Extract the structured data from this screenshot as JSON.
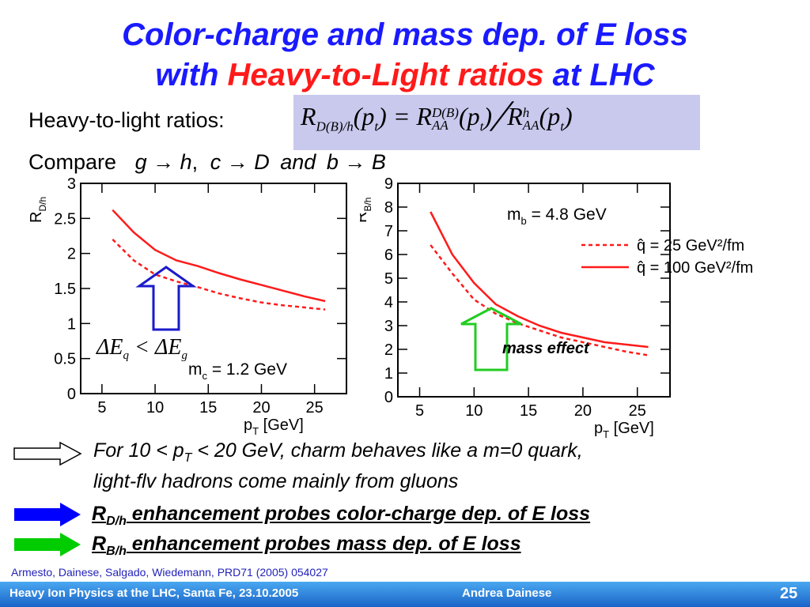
{
  "title": {
    "line1": "Color-charge and mass dep. of E loss",
    "line2_pre": "with ",
    "line2_red": "Heavy-to-Light ratios",
    "line2_post": " at LHC"
  },
  "ratios_label": "Heavy-to-light ratios:",
  "formula": {
    "lhs_R": "R",
    "lhs_sub": "D(B)/h",
    "lhs_arg": "(p",
    "t": "t",
    "close": ")",
    "eq": " = ",
    "R": "R",
    "sup_DB": "D(B)",
    "sub_AA": "AA",
    "slash": "╱",
    "sup_h": "h"
  },
  "compare": {
    "label": "Compare",
    "g": "g",
    "h": "h",
    "c": "c",
    "D": "D",
    "and": "and",
    "b": "b",
    "B": "B",
    "arrow": "→",
    "comma": ","
  },
  "colors": {
    "title_blue": "#1a1aff",
    "title_red": "#ff1a1a",
    "curve_red": "#ff1a1a",
    "arrow_blue": "#1a1acc",
    "arrow_green": "#22cc22",
    "bullet_blue": "#0000ff",
    "bullet_green": "#00cc00",
    "footer": "#1a64c8"
  },
  "chart_data": [
    {
      "type": "line",
      "ylabel": "R_D/h",
      "xlabel": "p_T [GeV]",
      "xlim": [
        3,
        28
      ],
      "ylim": [
        0,
        3
      ],
      "xticks": [
        5,
        10,
        15,
        20,
        25
      ],
      "yticks": [
        0,
        0.5,
        1,
        1.5,
        2,
        2.5,
        3
      ],
      "tick_labels_x": [
        "5",
        "10",
        "15",
        "20",
        "25"
      ],
      "tick_labels_y": [
        "0",
        "0.5",
        "1",
        "1.5",
        "2",
        "2.5",
        "3"
      ],
      "annotation_mass": "m",
      "annotation_mass_sub": "c",
      "annotation_mass_val": " = 1.2 GeV",
      "annotation_delta": {
        "lhs": "ΔE",
        "lhs_sub": "q",
        "op": " < ",
        "rhs": "ΔE",
        "rhs_sub": "g"
      },
      "series": [
        {
          "style": "solid",
          "x": [
            6,
            8,
            10,
            12,
            14,
            16,
            18,
            20,
            22,
            24,
            26
          ],
          "y": [
            2.62,
            2.3,
            2.05,
            1.9,
            1.82,
            1.72,
            1.63,
            1.55,
            1.47,
            1.39,
            1.32
          ]
        },
        {
          "style": "dashed",
          "x": [
            6,
            8,
            10,
            12,
            14,
            16,
            18,
            20,
            22,
            24,
            26
          ],
          "y": [
            2.2,
            1.9,
            1.7,
            1.6,
            1.52,
            1.43,
            1.36,
            1.3,
            1.26,
            1.23,
            1.2
          ]
        }
      ]
    },
    {
      "type": "line",
      "ylabel": "R_B/h",
      "xlabel": "p_T [GeV]",
      "xlim": [
        3,
        28
      ],
      "ylim": [
        0,
        9
      ],
      "xticks": [
        5,
        10,
        15,
        20,
        25
      ],
      "yticks": [
        0,
        1,
        2,
        3,
        4,
        5,
        6,
        7,
        8,
        9
      ],
      "tick_labels_x": [
        "5",
        "10",
        "15",
        "20",
        "25"
      ],
      "tick_labels_y": [
        "0",
        "1",
        "2",
        "3",
        "4",
        "5",
        "6",
        "7",
        "8",
        "9"
      ],
      "annotation_mass": "m",
      "annotation_mass_sub": "b",
      "annotation_mass_val": " = 4.8 GeV",
      "annotation_effect": "mass effect",
      "legend": [
        {
          "label": "q̂ = 25 GeV²/fm",
          "style": "dashed"
        },
        {
          "label": "q̂ = 100 GeV²/fm",
          "style": "solid"
        }
      ],
      "series": [
        {
          "name": "q̂ = 100 GeV²/fm",
          "style": "solid",
          "x": [
            6,
            8,
            10,
            12,
            14,
            16,
            18,
            20,
            22,
            24,
            26
          ],
          "y": [
            7.8,
            6.0,
            4.8,
            3.9,
            3.4,
            3.0,
            2.7,
            2.5,
            2.3,
            2.2,
            2.1
          ]
        },
        {
          "name": "q̂ = 25 GeV²/fm",
          "style": "dashed",
          "x": [
            6,
            8,
            10,
            12,
            14,
            16,
            18,
            20,
            22,
            24,
            26
          ],
          "y": [
            6.4,
            5.2,
            4.1,
            3.5,
            3.1,
            2.8,
            2.5,
            2.3,
            2.1,
            1.9,
            1.75
          ]
        }
      ]
    }
  ],
  "bullets": [
    {
      "text_pre": "For 10 < p",
      "sub": "T",
      "text_post": " < 20 GeV, charm behaves like a m=0 quark,"
    },
    {
      "text": "light-flv hadrons come mainly from gluons"
    },
    {
      "R": "R",
      "sub": "D/h",
      "text": " enhancement probes color-charge dep. of E loss"
    },
    {
      "R": "R",
      "sub": "B/h",
      "text": " enhancement probes mass dep. of E loss"
    }
  ],
  "reference": "Armesto, Dainese, Salgado, Wiedemann, PRD71 (2005) 054027",
  "footer": {
    "left": "Heavy Ion Physics at the LHC, Santa Fe, 23.10.2005",
    "center": "Andrea Dainese",
    "page": "25"
  }
}
